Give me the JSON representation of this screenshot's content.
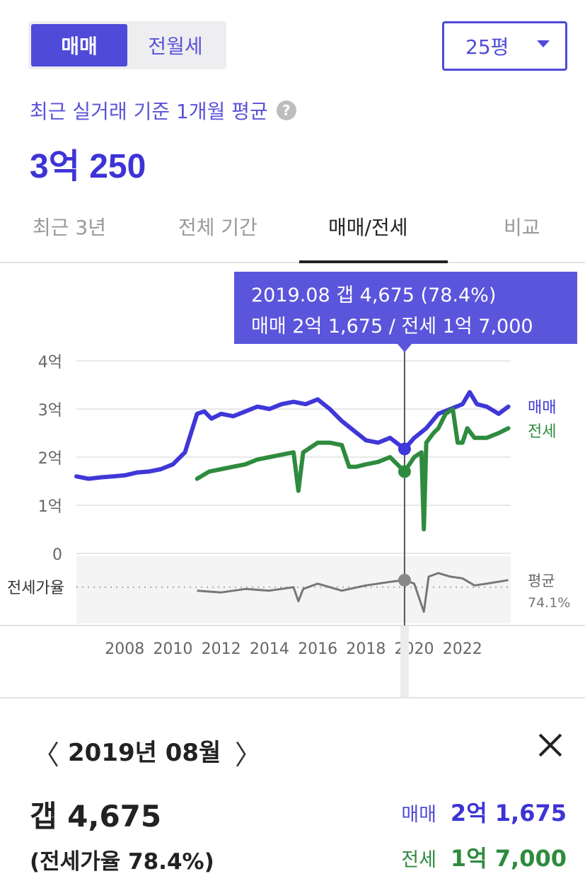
{
  "toggle": {
    "sale": "매매",
    "rent": "전월세",
    "active": "sale"
  },
  "size_select": {
    "value": "25평"
  },
  "summary": {
    "subtitle": "최근 실거래 기준 1개월 평균",
    "help": "?",
    "avg_price": "3억 250"
  },
  "tabs": [
    {
      "label": "최근 3년"
    },
    {
      "label": "전체 기간"
    },
    {
      "label": "매매/전세",
      "active": true
    },
    {
      "label": "비교"
    }
  ],
  "tooltip": {
    "line1": "2019.08  갭 4,675 (78.4%)",
    "line2": "매매 2억 1,675 / 전세 1억 7,000"
  },
  "chart_data": {
    "type": "line",
    "y_tick_labels": [
      "4억",
      "3억",
      "2억",
      "1억",
      "0"
    ],
    "ylim": [
      0,
      4
    ],
    "x_tick_labels": [
      "2008",
      "2010",
      "2012",
      "2014",
      "2016",
      "2018",
      "2020",
      "2022"
    ],
    "xlim": [
      2006,
      2024
    ],
    "series": [
      {
        "name": "매매",
        "color": "#3f37d8",
        "x": [
          2006.0,
          2006.5,
          2007.0,
          2007.5,
          2008.0,
          2008.5,
          2009.0,
          2009.5,
          2010.0,
          2010.5,
          2011.0,
          2011.3,
          2011.6,
          2012.0,
          2012.5,
          2013.0,
          2013.5,
          2014.0,
          2014.5,
          2015.0,
          2015.5,
          2016.0,
          2016.5,
          2017.0,
          2017.5,
          2018.0,
          2018.5,
          2019.0,
          2019.6,
          2020.0,
          2020.5,
          2021.0,
          2021.5,
          2022.0,
          2022.3,
          2022.6,
          2023.0,
          2023.5,
          2023.9
        ],
        "values": [
          1.6,
          1.55,
          1.58,
          1.6,
          1.62,
          1.68,
          1.7,
          1.75,
          1.85,
          2.1,
          2.9,
          2.95,
          2.8,
          2.9,
          2.85,
          2.95,
          3.05,
          3.0,
          3.1,
          3.15,
          3.1,
          3.2,
          3.0,
          2.75,
          2.55,
          2.35,
          2.3,
          2.4,
          2.17,
          2.4,
          2.6,
          2.9,
          3.0,
          3.1,
          3.35,
          3.1,
          3.05,
          2.9,
          3.05
        ]
      },
      {
        "name": "전세",
        "color": "#2e8b3e",
        "x": [
          2011.0,
          2011.5,
          2012.0,
          2012.5,
          2013.0,
          2013.5,
          2014.0,
          2014.5,
          2015.0,
          2015.2,
          2015.4,
          2015.7,
          2016.0,
          2016.5,
          2017.0,
          2017.3,
          2017.6,
          2018.0,
          2018.5,
          2019.0,
          2019.6,
          2020.0,
          2020.3,
          2020.4,
          2020.5,
          2020.8,
          2021.0,
          2021.3,
          2021.6,
          2021.8,
          2022.0,
          2022.2,
          2022.5,
          2023.0,
          2023.5,
          2023.9
        ],
        "values": [
          1.55,
          1.7,
          1.75,
          1.8,
          1.85,
          1.95,
          2.0,
          2.05,
          2.1,
          1.3,
          2.1,
          2.2,
          2.3,
          2.3,
          2.25,
          1.8,
          1.8,
          1.85,
          1.9,
          2.0,
          1.7,
          2.0,
          2.1,
          0.5,
          2.3,
          2.5,
          2.6,
          2.9,
          3.0,
          2.3,
          2.3,
          2.6,
          2.4,
          2.4,
          2.5,
          2.6
        ]
      }
    ],
    "ratio_series": {
      "name": "전세가율",
      "color": "#777777",
      "avg_label": "평균",
      "avg_value": "74.1%",
      "x": [
        2011.0,
        2012.0,
        2013.0,
        2014.0,
        2015.0,
        2015.2,
        2015.4,
        2016.0,
        2017.0,
        2018.0,
        2019.0,
        2019.6,
        2020.0,
        2020.4,
        2020.6,
        2021.0,
        2021.5,
        2022.0,
        2022.5,
        2023.0,
        2023.9
      ],
      "values": [
        72,
        71,
        73,
        72,
        74,
        66,
        73,
        76,
        72,
        75,
        77,
        78,
        76,
        60,
        80,
        82,
        80,
        79,
        75,
        76,
        78
      ]
    },
    "selected": {
      "x": 2019.6,
      "sale": 2.17,
      "rent": 1.7,
      "ratio": 78
    }
  },
  "detail": {
    "prev": "〈",
    "next": "〉",
    "date": "2019년 08월",
    "gap": "갭 4,675",
    "ratio": "(전세가율 78.4%)",
    "sale_label": "매매",
    "sale_value": "2억 1,675",
    "rent_label": "전세",
    "rent_value": "1억 7,000"
  }
}
